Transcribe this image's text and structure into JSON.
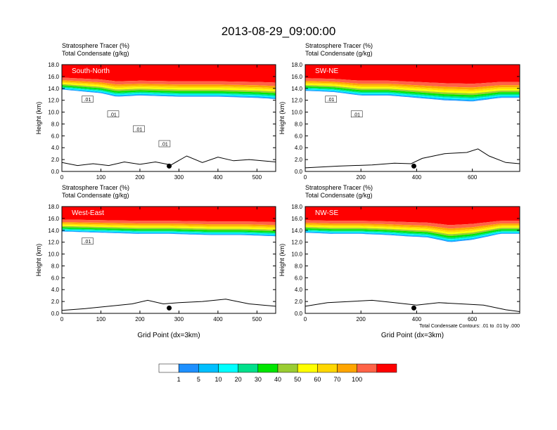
{
  "title": "2013-08-29_09:00:00",
  "chart_data": [
    {
      "type": "contour",
      "label": "South-North",
      "line1": "Stratosphere Tracer   (%)",
      "line2": "Total Condensate   (g/kg)",
      "xlabel": "",
      "ylabel": "Height (km)",
      "xlim": [
        0,
        548
      ],
      "xticks": [
        0,
        100,
        200,
        300,
        400,
        500
      ],
      "ylim": [
        0,
        18
      ],
      "yticks": [
        "0.0",
        "2.0",
        "4.0",
        "6.0",
        "8.0",
        "10.0",
        "12.0",
        "14.0",
        "16.0",
        "18.0"
      ],
      "contour_labels": [
        ".01",
        ".01",
        ".01",
        ".01"
      ],
      "marker_x": 275,
      "terrain_km": [
        [
          0,
          1.5
        ],
        [
          40,
          1.0
        ],
        [
          80,
          1.3
        ],
        [
          120,
          1.0
        ],
        [
          160,
          1.6
        ],
        [
          200,
          1.2
        ],
        [
          240,
          1.6
        ],
        [
          280,
          1.1
        ],
        [
          320,
          2.6
        ],
        [
          360,
          1.5
        ],
        [
          400,
          2.4
        ],
        [
          440,
          1.8
        ],
        [
          480,
          2.0
        ],
        [
          548,
          1.6
        ]
      ],
      "tropopause_km": [
        [
          0,
          13.8
        ],
        [
          100,
          13.2
        ],
        [
          140,
          12.6
        ],
        [
          200,
          12.8
        ],
        [
          300,
          12.6
        ],
        [
          400,
          12.6
        ],
        [
          500,
          12.4
        ],
        [
          548,
          12.2
        ]
      ]
    },
    {
      "type": "contour",
      "label": "SW-NE",
      "line1": "Stratosphere Tracer   (%)",
      "line2": "Total Condensate   (g/kg)",
      "xlabel": "",
      "ylabel": "Height (km)",
      "xlim": [
        0,
        770
      ],
      "xticks": [
        0,
        200,
        400,
        600
      ],
      "ylim": [
        0,
        18
      ],
      "yticks": [
        "0.0",
        "2.0",
        "4.0",
        "6.0",
        "8.0",
        "10.0",
        "12.0",
        "14.0",
        "16.0",
        "18.0"
      ],
      "contour_labels": [
        ".01",
        ".01"
      ],
      "marker_x": 390,
      "terrain_km": [
        [
          0,
          0.6
        ],
        [
          120,
          0.9
        ],
        [
          240,
          1.1
        ],
        [
          320,
          1.4
        ],
        [
          380,
          1.3
        ],
        [
          420,
          2.2
        ],
        [
          500,
          3.0
        ],
        [
          580,
          3.2
        ],
        [
          620,
          3.8
        ],
        [
          660,
          2.6
        ],
        [
          720,
          1.5
        ],
        [
          770,
          1.3
        ]
      ],
      "tropopause_km": [
        [
          0,
          13.6
        ],
        [
          100,
          13.4
        ],
        [
          200,
          12.8
        ],
        [
          300,
          12.8
        ],
        [
          400,
          12.4
        ],
        [
          500,
          12.0
        ],
        [
          600,
          11.8
        ],
        [
          700,
          12.4
        ],
        [
          770,
          12.4
        ]
      ]
    },
    {
      "type": "contour",
      "label": "West-East",
      "line1": "Stratosphere Tracer   (%)",
      "line2": "Total Condensate   (g/kg)",
      "xlabel": "Grid Point (dx=3km)",
      "ylabel": "Height (km)",
      "xlim": [
        0,
        548
      ],
      "xticks": [
        0,
        100,
        200,
        300,
        400,
        500
      ],
      "ylim": [
        0,
        18
      ],
      "yticks": [
        "0.0",
        "2.0",
        "4.0",
        "6.0",
        "8.0",
        "10.0",
        "12.0",
        "14.0",
        "16.0",
        "18.0"
      ],
      "contour_labels": [
        ".01"
      ],
      "marker_x": 275,
      "terrain_km": [
        [
          0,
          0.5
        ],
        [
          60,
          0.8
        ],
        [
          120,
          1.2
        ],
        [
          180,
          1.6
        ],
        [
          220,
          2.2
        ],
        [
          260,
          1.6
        ],
        [
          300,
          1.8
        ],
        [
          360,
          2.0
        ],
        [
          420,
          2.4
        ],
        [
          480,
          1.6
        ],
        [
          548,
          1.2
        ]
      ],
      "tropopause_km": [
        [
          0,
          13.8
        ],
        [
          100,
          13.6
        ],
        [
          200,
          13.4
        ],
        [
          280,
          13.4
        ],
        [
          380,
          13.2
        ],
        [
          460,
          13.2
        ],
        [
          548,
          13.0
        ]
      ]
    },
    {
      "type": "contour",
      "label": "NW-SE",
      "line1": "Stratosphere Tracer   (%)",
      "line2": "Total Condensate   (g/kg)",
      "xlabel": "Grid Point (dx=3km)",
      "ylabel": "Height (km)",
      "xlim": [
        0,
        770
      ],
      "xticks": [
        0,
        200,
        400,
        600
      ],
      "ylim": [
        0,
        18
      ],
      "yticks": [
        "0.0",
        "2.0",
        "4.0",
        "6.0",
        "8.0",
        "10.0",
        "12.0",
        "14.0",
        "16.0",
        "18.0"
      ],
      "contour_labels": [],
      "marker_x": 390,
      "footnote": "Total Condensate Contours: .01 to .01 by .000",
      "terrain_km": [
        [
          0,
          1.2
        ],
        [
          80,
          1.8
        ],
        [
          160,
          2.0
        ],
        [
          240,
          2.2
        ],
        [
          320,
          1.8
        ],
        [
          400,
          1.4
        ],
        [
          480,
          1.8
        ],
        [
          560,
          1.6
        ],
        [
          640,
          1.4
        ],
        [
          720,
          0.6
        ],
        [
          770,
          0.3
        ]
      ],
      "tropopause_km": [
        [
          0,
          13.6
        ],
        [
          100,
          13.4
        ],
        [
          200,
          13.4
        ],
        [
          300,
          13.2
        ],
        [
          360,
          13.0
        ],
        [
          440,
          12.8
        ],
        [
          520,
          12.0
        ],
        [
          600,
          12.4
        ],
        [
          700,
          13.4
        ],
        [
          770,
          13.4
        ]
      ]
    }
  ],
  "colorbar": {
    "labels": [
      "1",
      "5",
      "10",
      "20",
      "30",
      "40",
      "50",
      "60",
      "70",
      "100"
    ],
    "colors": [
      "#ffffff",
      "#1e90ff",
      "#00bfff",
      "#00ffff",
      "#00e08b",
      "#00e600",
      "#9acd32",
      "#ffff00",
      "#ffd700",
      "#ffa500",
      "#ff6347",
      "#ff0000"
    ]
  }
}
